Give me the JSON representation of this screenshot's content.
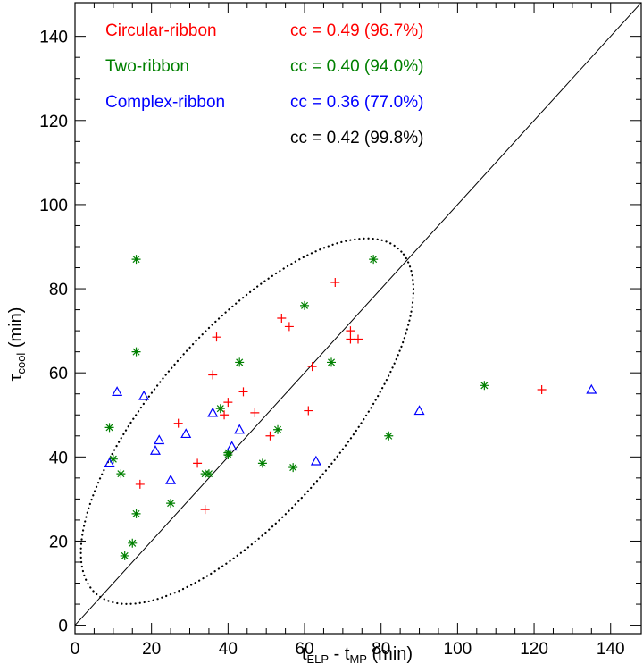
{
  "chart_data": {
    "type": "scatter",
    "title": "",
    "xlabel": {
      "base": "t",
      "sub1": "ELP",
      "mid": " - t",
      "sub2": "MP",
      "unit": " (min)"
    },
    "ylabel": {
      "base": "τ",
      "sub": "cool",
      "unit": " (min)"
    },
    "xlim": [
      0,
      148
    ],
    "ylim": [
      -2,
      148
    ],
    "xticks": [
      0,
      20,
      40,
      60,
      80,
      100,
      120,
      140
    ],
    "yticks": [
      0,
      20,
      40,
      60,
      80,
      100,
      120,
      140
    ],
    "grid": false,
    "legend_position": "top-left",
    "colors": {
      "circular": "#ff0000",
      "two": "#008000",
      "complex": "#0000ff",
      "all": "#000000"
    },
    "series": [
      {
        "name": "Circular-ribbon",
        "marker": "plus",
        "color": "#ff0000",
        "cc_label": "cc = 0.49 (96.7%)",
        "points": [
          [
            17,
            33.5
          ],
          [
            27,
            48
          ],
          [
            32,
            38.5
          ],
          [
            34,
            27.5
          ],
          [
            36,
            59.5
          ],
          [
            37,
            68.5
          ],
          [
            39,
            50
          ],
          [
            40,
            53
          ],
          [
            44,
            55.5
          ],
          [
            47,
            50.5
          ],
          [
            51,
            45
          ],
          [
            54,
            73
          ],
          [
            56,
            71
          ],
          [
            61,
            51
          ],
          [
            62,
            61.5
          ],
          [
            68,
            81.5
          ],
          [
            72,
            70
          ],
          [
            72,
            68
          ],
          [
            74,
            68
          ],
          [
            122,
            56
          ]
        ]
      },
      {
        "name": "Two-ribbon",
        "marker": "asterisk",
        "color": "#008000",
        "cc_label": "cc = 0.40 (94.0%)",
        "points": [
          [
            9,
            47
          ],
          [
            10,
            39.5
          ],
          [
            12,
            36
          ],
          [
            13,
            16.5
          ],
          [
            15,
            19.5
          ],
          [
            16,
            26.5
          ],
          [
            16,
            65
          ],
          [
            16,
            87
          ],
          [
            25,
            29
          ],
          [
            34,
            36
          ],
          [
            35,
            36
          ],
          [
            38,
            51.5
          ],
          [
            40,
            40.5
          ],
          [
            40,
            41
          ],
          [
            43,
            62.5
          ],
          [
            49,
            38.5
          ],
          [
            53,
            46.5
          ],
          [
            57,
            37.5
          ],
          [
            60,
            76
          ],
          [
            67,
            62.5
          ],
          [
            78,
            87
          ],
          [
            82,
            45
          ],
          [
            107,
            57
          ]
        ]
      },
      {
        "name": "Complex-ribbon",
        "marker": "triangle",
        "color": "#0000ff",
        "cc_label": "cc = 0.36 (77.0%)",
        "points": [
          [
            9,
            38.5
          ],
          [
            11,
            55.5
          ],
          [
            18,
            54.5
          ],
          [
            21,
            41.5
          ],
          [
            22,
            44
          ],
          [
            25,
            34.5
          ],
          [
            29,
            45.5
          ],
          [
            36,
            50.5
          ],
          [
            41,
            42.5
          ],
          [
            43,
            46.5
          ],
          [
            63,
            39
          ],
          [
            90,
            51
          ],
          [
            135,
            56
          ]
        ]
      }
    ],
    "overall_cc_label": "cc = 0.42 (99.8%)",
    "reference_line": {
      "type": "identity",
      "from": [
        0,
        0
      ],
      "to": [
        148,
        148
      ]
    },
    "ellipse": {
      "cx": 45,
      "cy": 48.5,
      "rx": 57,
      "ry": 23,
      "angle_deg": 45,
      "style": "dotted"
    }
  }
}
